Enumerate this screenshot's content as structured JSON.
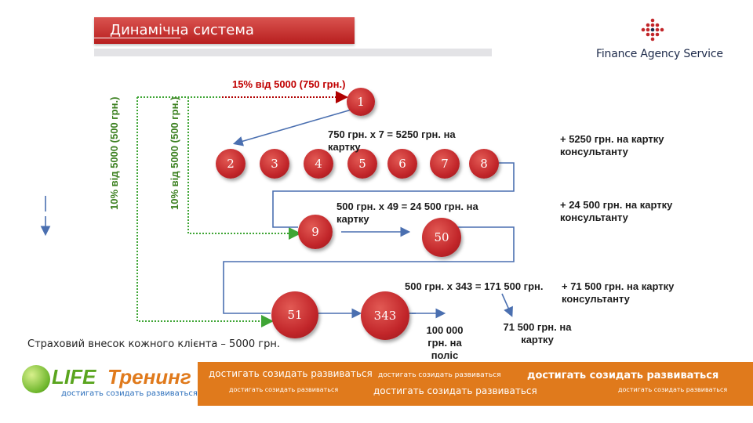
{
  "header": {
    "title": "Динамічна система",
    "logo_text": "Finance Agency Service"
  },
  "diagram": {
    "top_label": "15% від 5000 (750 грн.)",
    "vertical_label_1": "10% від 5000 (500 грн.)",
    "vertical_label_2": "10% від 5000 (500 грн.)",
    "nodes": [
      "1",
      "2",
      "3",
      "4",
      "5",
      "6",
      "7",
      "8",
      "9",
      "50",
      "51",
      "343"
    ],
    "row1_text": "750 грн. х 7 = 5250 грн. на картку",
    "row1_right": "+ 5250 грн. на картку консультанту",
    "row2_text": "500 грн. х 49 = 24 500 грн. на картку",
    "row2_right": "+ 24 500 грн. на картку консультанту",
    "row3_text": "500 грн. х 343 = 171 500 грн.",
    "row3_right": "+ 71 500 грн. на картку консультанту",
    "policy_text": "100 000 грн. на поліс",
    "card_text": "71 500 грн. на картку",
    "note": "Страховий внесок кожного клієнта – 5000 грн."
  },
  "footer": {
    "brand_life": "LIFE",
    "brand_training": "Тренинг",
    "brand_slogan": "достигать созидать развиваться",
    "slogan": "достигать созидать развиваться",
    "colors": {
      "orange": "#e07a1c",
      "green": "#5aa51f",
      "blue": "#2a6ebb"
    }
  },
  "colors": {
    "node_red": "#c2262a",
    "arrow_red": "#b00000",
    "arrow_green": "#3fa535",
    "line_blue": "#4a6fb0",
    "title_red": "#c9302c"
  }
}
